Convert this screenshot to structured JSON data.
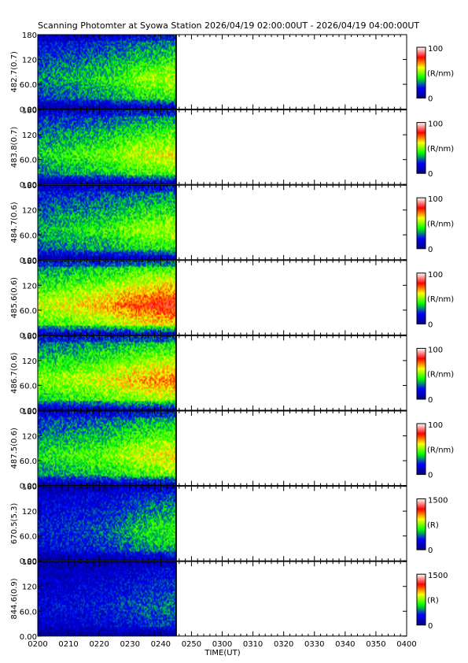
{
  "title": "Scanning Photomter at Syowa Station 2026/04/19 02:00:00UT - 2026/04/19 04:00:00UT",
  "chart_data": {
    "type": "heatmap",
    "xlabel": "TIME(UT)",
    "x_ticks": [
      "0200",
      "0210",
      "0220",
      "0230",
      "0240",
      "0250",
      "0300",
      "0310",
      "0320",
      "0330",
      "0340",
      "0350",
      "0400"
    ],
    "xlim": [
      "02:00",
      "04:00"
    ],
    "data_end": "02:45",
    "ylim": [
      0,
      180
    ],
    "y_ticks": [
      "0.00",
      "60.0",
      "120",
      "180"
    ],
    "colormap": [
      "#000080",
      "#0000ff",
      "#00ff00",
      "#ffff00",
      "#ff0000",
      "#ffffff"
    ],
    "panels": [
      {
        "channel": "482.7(0.7)",
        "cbar_max": "100",
        "cbar_min": "0",
        "unit": "(R/nm)",
        "intensity": [
          0.3,
          0.45,
          0.55
        ]
      },
      {
        "channel": "483.8(0.7)",
        "cbar_max": "100",
        "cbar_min": "0",
        "unit": "(R/nm)",
        "intensity": [
          0.38,
          0.52,
          0.6
        ]
      },
      {
        "channel": "484.7(0.6)",
        "cbar_max": "100",
        "cbar_min": "0",
        "unit": "(R/nm)",
        "intensity": [
          0.35,
          0.47,
          0.55
        ]
      },
      {
        "channel": "485.6(0.6)",
        "cbar_max": "100",
        "cbar_min": "0",
        "unit": "(R/nm)",
        "intensity": [
          0.55,
          0.72,
          0.82
        ]
      },
      {
        "channel": "486.7(0.6)",
        "cbar_max": "100",
        "cbar_min": "0",
        "unit": "(R/nm)",
        "intensity": [
          0.5,
          0.62,
          0.72
        ]
      },
      {
        "channel": "487.5(0.6)",
        "cbar_max": "100",
        "cbar_min": "0",
        "unit": "(R/nm)",
        "intensity": [
          0.4,
          0.52,
          0.62
        ]
      },
      {
        "channel": "670.5(5.3)",
        "cbar_max": "1500",
        "cbar_min": "0",
        "unit": "(R)",
        "intensity": [
          0.2,
          0.3,
          0.45
        ]
      },
      {
        "channel": "844.6(0.9)",
        "cbar_max": "1500",
        "cbar_min": "0",
        "unit": "(R)",
        "intensity": [
          0.15,
          0.22,
          0.3
        ]
      }
    ]
  }
}
